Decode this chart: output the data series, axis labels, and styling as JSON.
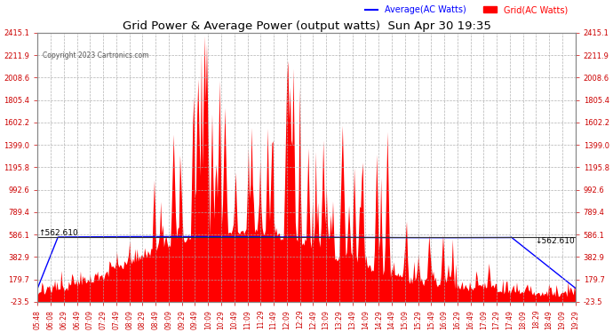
{
  "title": "Grid Power & Average Power (output watts)  Sun Apr 30 19:35",
  "copyright": "Copyright 2023 Cartronics.com",
  "legend_average": "Average(AC Watts)",
  "legend_grid": "Grid(AC Watts)",
  "yticks": [
    2415.1,
    2211.9,
    2008.6,
    1805.4,
    1602.2,
    1399.0,
    1195.8,
    992.6,
    789.4,
    586.1,
    382.9,
    179.7,
    -23.5
  ],
  "ymin": -23.5,
  "ymax": 2415.1,
  "hline_value": 562.61,
  "hline_label": "562.610",
  "fill_color": "#ff0000",
  "avg_line_color": "#0000ff",
  "grid_color": "#aaaaaa",
  "xtick_labels": [
    "05:48",
    "06:08",
    "06:29",
    "06:49",
    "07:09",
    "07:29",
    "07:49",
    "08:09",
    "08:29",
    "08:49",
    "09:09",
    "09:29",
    "09:49",
    "10:09",
    "10:29",
    "10:49",
    "11:09",
    "11:29",
    "11:49",
    "12:09",
    "12:29",
    "12:49",
    "13:09",
    "13:29",
    "13:49",
    "14:09",
    "14:29",
    "14:49",
    "15:09",
    "15:29",
    "15:49",
    "16:09",
    "16:29",
    "16:49",
    "17:09",
    "17:29",
    "17:49",
    "18:09",
    "18:29",
    "18:49",
    "19:09",
    "19:29"
  ],
  "n_points": 504
}
